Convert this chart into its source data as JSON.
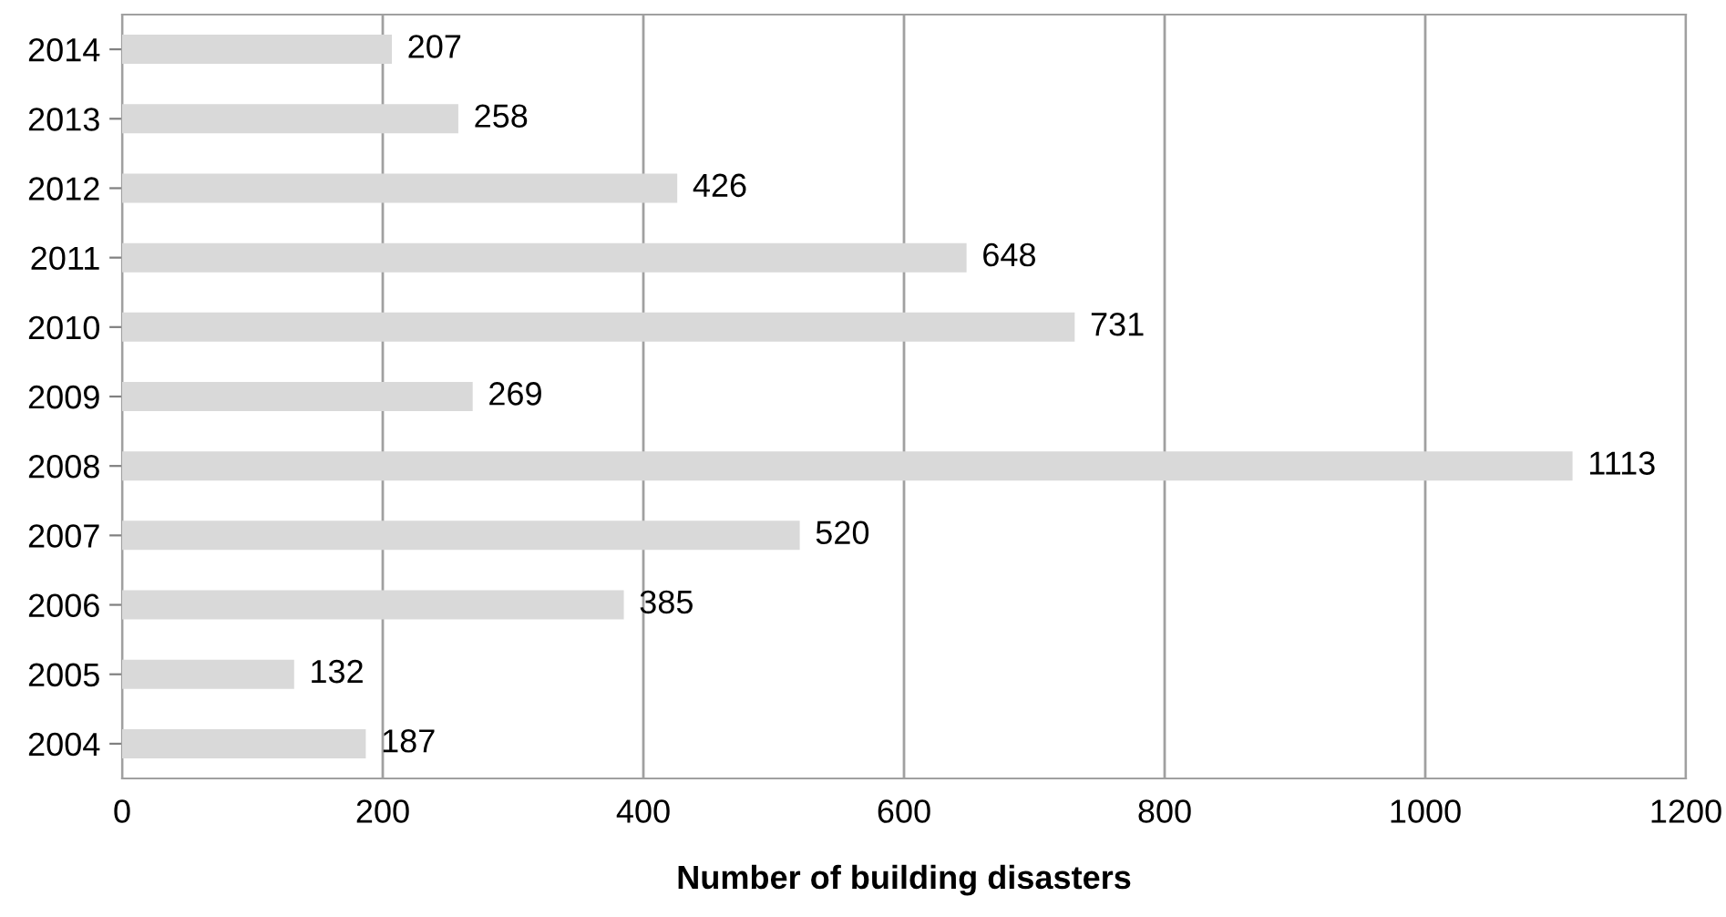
{
  "chart_data": {
    "type": "bar",
    "orientation": "horizontal",
    "xlabel": "Number of building disasters",
    "categories": [
      "2014",
      "2013",
      "2012",
      "2011",
      "2010",
      "2009",
      "2008",
      "2007",
      "2006",
      "2005",
      "2004"
    ],
    "values": [
      207,
      258,
      426,
      648,
      731,
      269,
      1113,
      520,
      385,
      132,
      187
    ],
    "color": "#d9d9d9",
    "data_labels": true,
    "xlim": [
      0,
      1200
    ],
    "xticks": [
      0,
      200,
      400,
      600,
      800,
      1000,
      1200
    ],
    "grid": "x",
    "legend": false
  }
}
